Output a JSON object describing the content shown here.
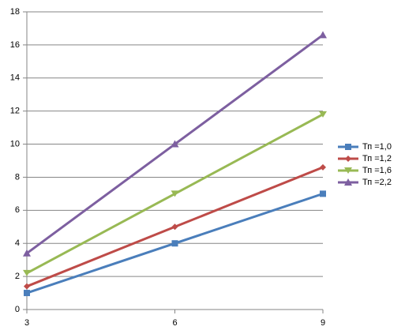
{
  "chart_data": {
    "type": "line",
    "x": [
      3,
      6,
      9
    ],
    "xlim": [
      3,
      9
    ],
    "xticks": [
      3,
      6,
      9
    ],
    "ylim": [
      0,
      18
    ],
    "yticks": [
      0,
      2,
      4,
      6,
      8,
      10,
      12,
      14,
      16,
      18
    ],
    "grid": true,
    "legend": "right",
    "series": [
      {
        "name": "Тп =1,0",
        "color": "#4a7ebb",
        "marker": "square",
        "values": [
          1.0,
          4.0,
          7.0
        ]
      },
      {
        "name": "Тп =1,2",
        "color": "#be4b48",
        "marker": "diamond",
        "values": [
          1.4,
          5.0,
          8.6
        ]
      },
      {
        "name": "Тп =1,6",
        "color": "#98b954",
        "marker": "triangle-down",
        "values": [
          2.2,
          7.0,
          11.8
        ]
      },
      {
        "name": "Тп =2,2",
        "color": "#7d5fa0",
        "marker": "triangle-up",
        "values": [
          3.4,
          10.0,
          16.6
        ]
      }
    ]
  }
}
